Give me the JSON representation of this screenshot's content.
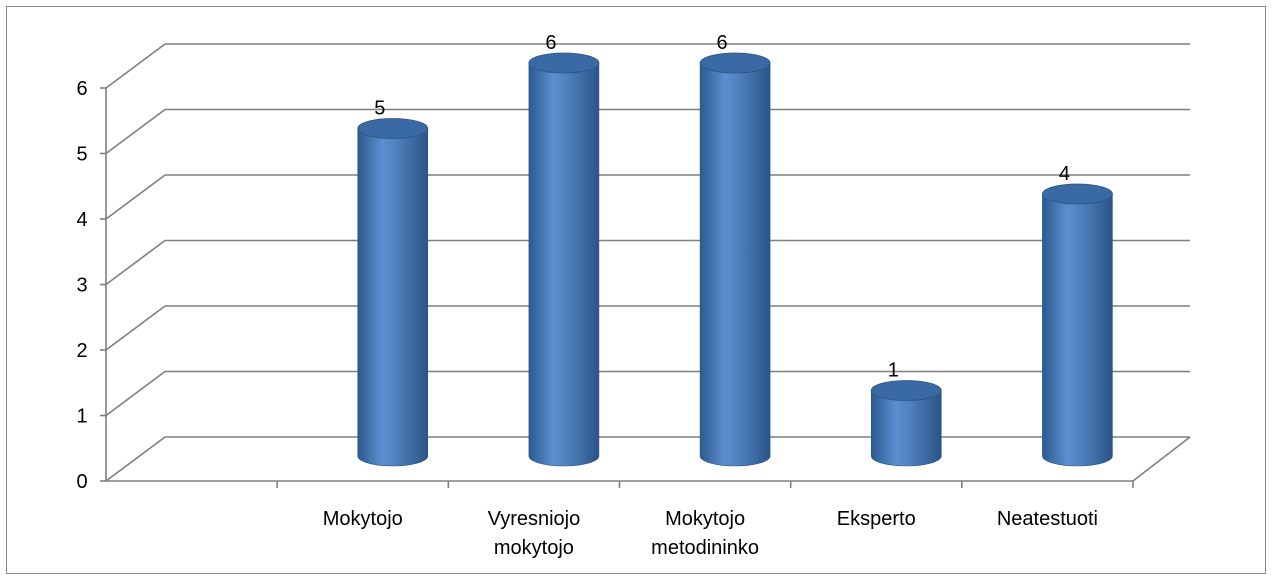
{
  "chart_data": {
    "type": "bar",
    "style": "3d-cylinder",
    "categories": [
      "",
      [
        "Mokytojo"
      ],
      [
        "Vyresniojo",
        "mokytojo"
      ],
      [
        "Mokytojo",
        "metodininko"
      ],
      [
        "Eksperto"
      ],
      [
        "Neatestuoti"
      ]
    ],
    "values": [
      null,
      5,
      6,
      6,
      1,
      4
    ],
    "data_labels": [
      "",
      "5",
      "6",
      "6",
      "1",
      "4"
    ],
    "title": "",
    "xlabel": "",
    "ylabel": "",
    "ylim": [
      0,
      6
    ],
    "yticks": [
      "0",
      "1",
      "2",
      "3",
      "4",
      "5",
      "6"
    ],
    "grid": true,
    "legend": false,
    "colors": {
      "bar": "#4f81bd",
      "bar_dark": "#2b5689",
      "bar_top": "#3a6aa3",
      "grid": "#7f7f7f"
    }
  }
}
